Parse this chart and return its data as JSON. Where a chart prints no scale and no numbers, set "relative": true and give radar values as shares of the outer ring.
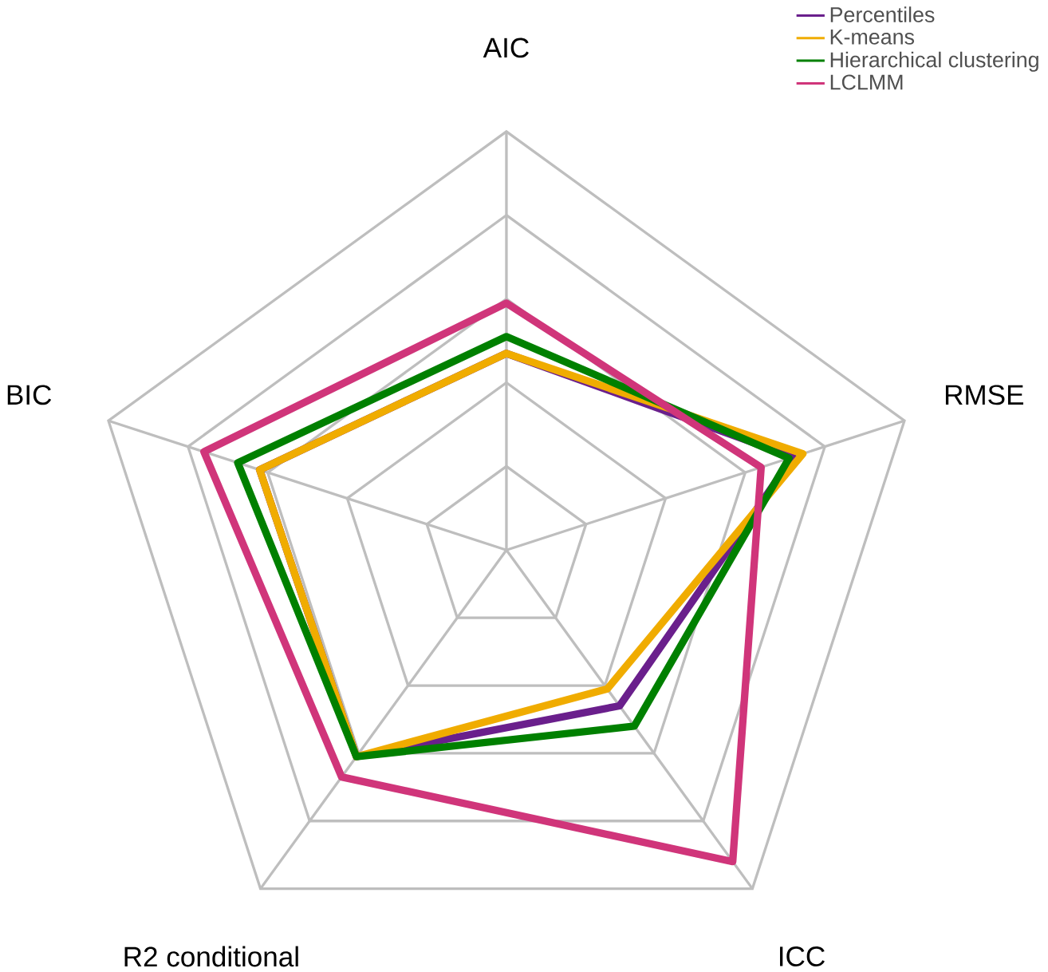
{
  "chart_data": {
    "type": "radar",
    "relative": true,
    "grid": true,
    "legend": "top right",
    "categories": [
      "AIC",
      "RMSE",
      "ICC",
      "R2  conditional",
      "BIC"
    ],
    "series": [
      {
        "name": "Percentiles",
        "color": "#6a1f8c",
        "values": [
          0.47,
          0.72,
          0.46,
          0.61,
          0.62
        ]
      },
      {
        "name": "K-means",
        "color": "#f0ac00",
        "values": [
          0.47,
          0.745,
          0.41,
          0.61,
          0.62
        ]
      },
      {
        "name": "Hierarchical clustering",
        "color": "#008000",
        "values": [
          0.51,
          0.71,
          0.52,
          0.61,
          0.675
        ]
      },
      {
        "name": "LCLMM",
        "color": "#d0357a",
        "values": [
          0.59,
          0.64,
          0.92,
          0.67,
          0.76
        ]
      }
    ]
  }
}
